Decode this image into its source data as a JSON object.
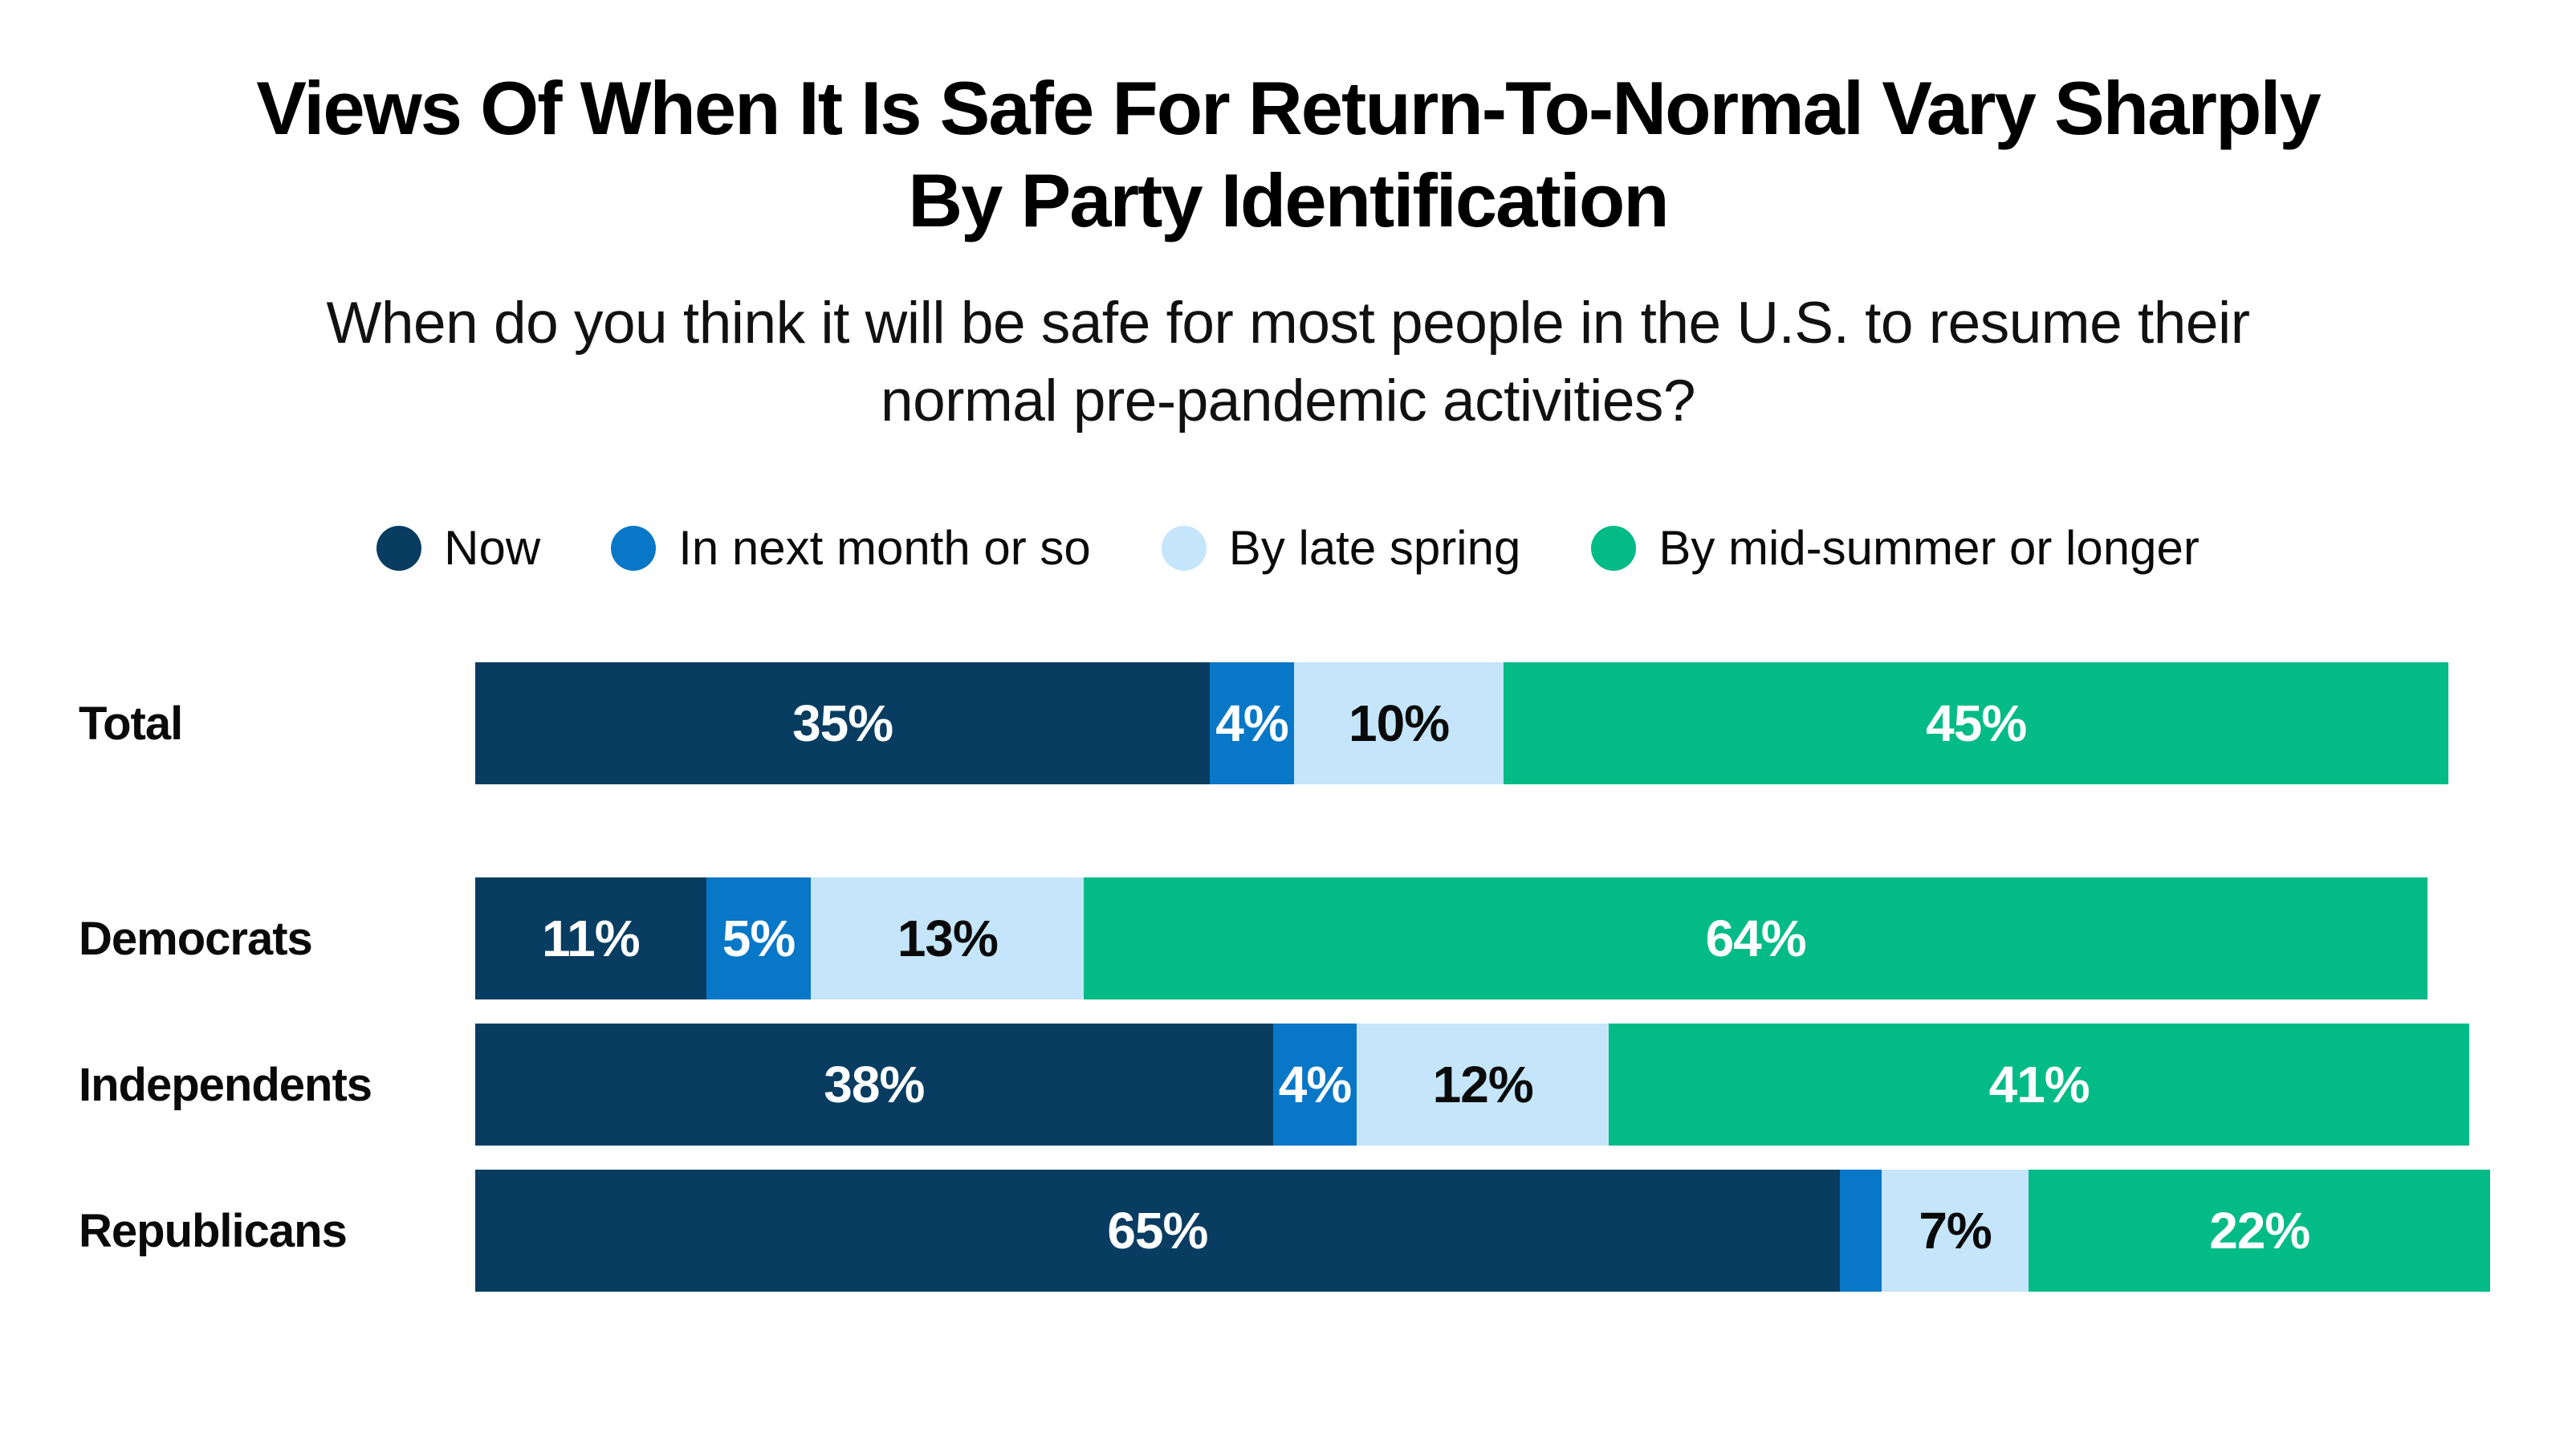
{
  "chart_data": {
    "type": "bar",
    "variant": "horizontal-stacked",
    "unit": "percent",
    "title": "Views Of When It Is Safe For Return-To-Normal Vary Sharply By Party Identification",
    "title_lines": [
      "Views Of When It Is Safe For Return-To-Normal Vary Sharply",
      "By Party Identification"
    ],
    "subtitle": "When do you think it will be safe for most people in the U.S. to resume their normal pre-pandemic activities?",
    "subtitle_lines": [
      "When do you think it will be safe for most people in the U.S. to resume their",
      "normal pre-pandemic activities?"
    ],
    "legend_position": "top-center",
    "grid": false,
    "xlim": [
      0,
      100
    ],
    "categories": [
      "Total",
      "Democrats",
      "Independents",
      "Republicans"
    ],
    "series": [
      {
        "name": "Now",
        "color": "#083d61",
        "label_color": "#ffffff",
        "values": [
          35,
          11,
          38,
          65
        ],
        "labels": [
          "35%",
          "11%",
          "38%",
          "65%"
        ]
      },
      {
        "name": "In next month or so",
        "color": "#0877c7",
        "label_color": "#ffffff",
        "values": [
          4,
          5,
          4,
          2
        ],
        "labels": [
          "4%",
          "5%",
          "4%",
          ""
        ]
      },
      {
        "name": "By late spring",
        "color": "#c4e5fa",
        "label_color": "#0a0a0a",
        "values": [
          10,
          13,
          12,
          7
        ],
        "labels": [
          "10%",
          "13%",
          "12%",
          "7%"
        ]
      },
      {
        "name": "By mid-summer or longer",
        "color": "#02bb86",
        "label_color": "#ffffff",
        "values": [
          45,
          64,
          41,
          22
        ],
        "labels": [
          "45%",
          "64%",
          "41%",
          "22%"
        ]
      }
    ],
    "notes": "First row (Total) is separated from the three party rows by a larger vertical gap. The 2% segment in the Republicans row has no printed label."
  },
  "page_colors": {
    "background": "#ffffff",
    "title_text": "#000000",
    "subtitle_text": "#111111"
  }
}
